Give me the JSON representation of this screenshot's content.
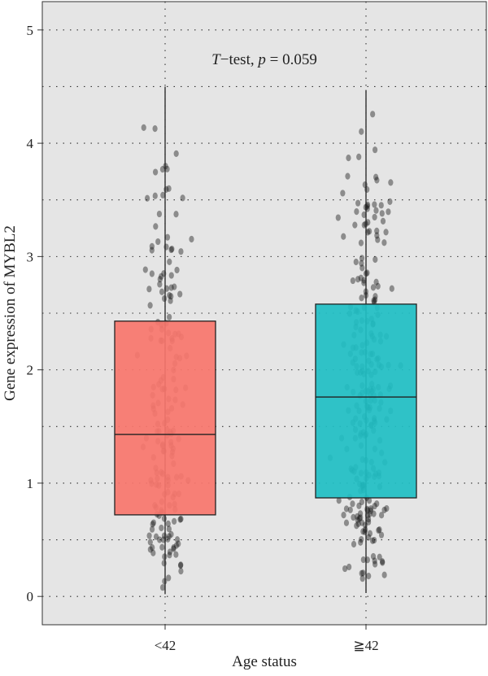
{
  "chart_data": {
    "type": "box",
    "xlabel": "Age status",
    "ylabel": "Gene expression of MYBL2",
    "annotation": {
      "prefix": "T",
      "text": "−test, ",
      "p_symbol": "p",
      "p_text": " = 0.059"
    },
    "ylim": [
      -0.25,
      5.25
    ],
    "yticks": [
      0,
      1,
      2,
      3,
      4,
      5
    ],
    "grid": true,
    "panel_color": "#e5e5e5",
    "categories": [
      "<42",
      "≧42"
    ],
    "groups": [
      {
        "label": "<42",
        "color": "#f8766d",
        "min": 0.02,
        "q1": 0.72,
        "median": 1.43,
        "q3": 2.43,
        "max": 4.5,
        "n": 180
      },
      {
        "label": "≧42",
        "color": "#1fbfc4",
        "min": 0.03,
        "q1": 0.87,
        "median": 1.76,
        "q3": 2.58,
        "max": 4.47,
        "n": 260
      }
    ]
  }
}
